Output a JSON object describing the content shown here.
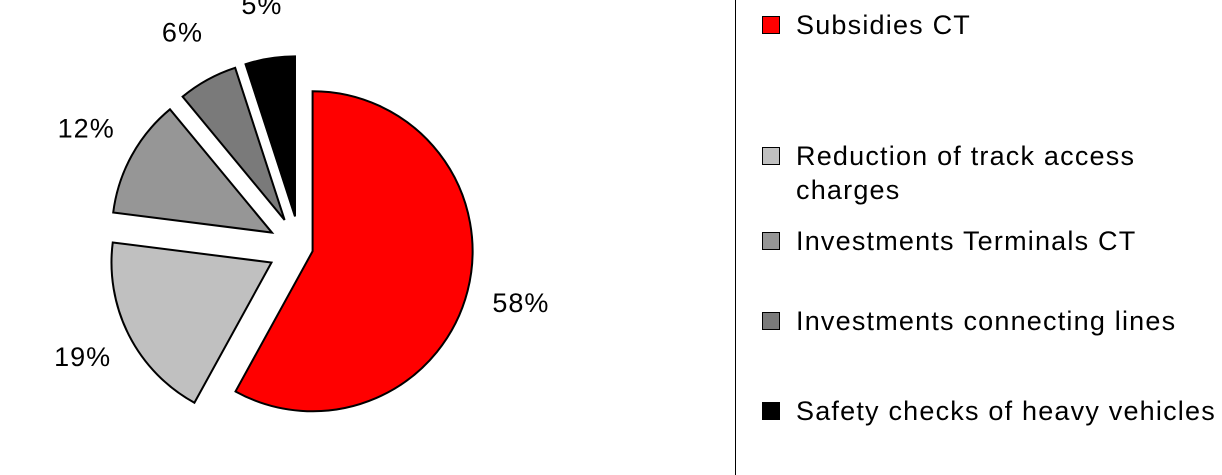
{
  "chart_data": {
    "type": "pie",
    "categories": [
      "Subsidies CT",
      "Reduction of track access charges",
      "Investments Terminals CT",
      "Investments connecting lines",
      "Safety checks of heavy vehicles"
    ],
    "values": [
      58,
      19,
      12,
      6,
      5
    ],
    "value_labels": [
      "58%",
      "19%",
      "12%",
      "6%",
      "5%"
    ],
    "colors": [
      "#ff0000",
      "#c0c0c0",
      "#969696",
      "#7a7a7a",
      "#000000"
    ],
    "legend": "right"
  }
}
